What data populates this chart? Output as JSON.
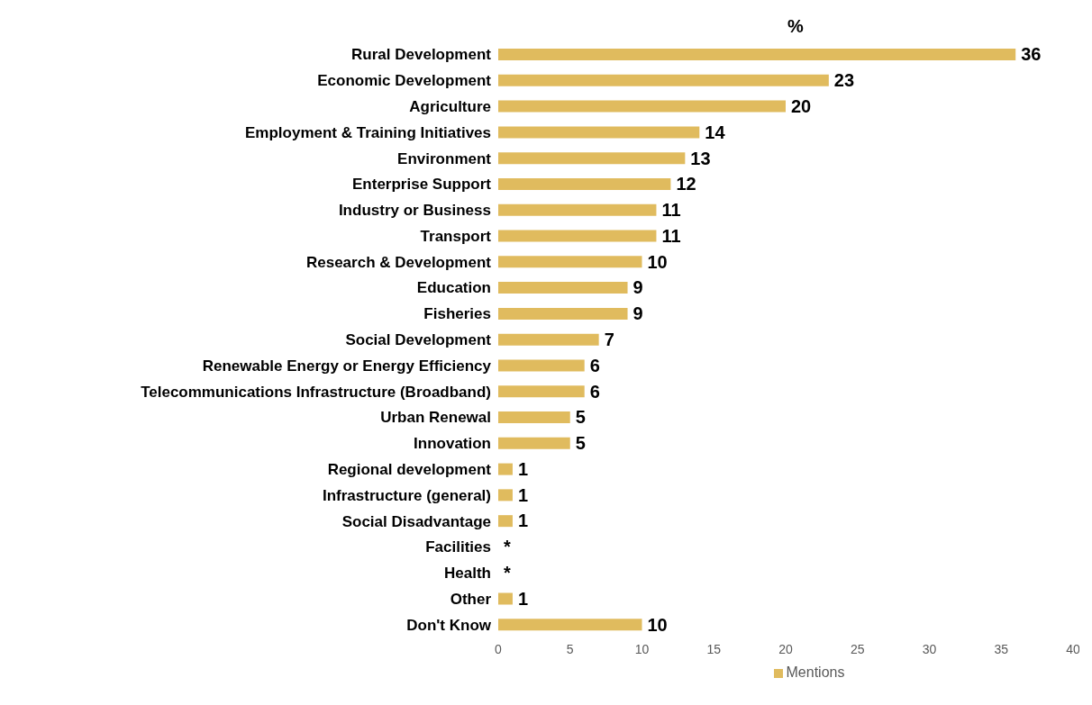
{
  "chart_data": {
    "type": "bar",
    "orientation": "horizontal",
    "title": "%",
    "categories": [
      "Rural Development",
      "Economic Development",
      "Agriculture",
      "Employment & Training Initiatives",
      "Environment",
      "Enterprise Support",
      "Industry or Business",
      "Transport",
      "Research & Development",
      "Education",
      "Fisheries",
      "Social Development",
      "Renewable Energy or Energy Efficiency",
      "Telecommunications Infrastructure (Broadband)",
      "Urban Renewal",
      "Innovation",
      "Regional development",
      "Infrastructure (general)",
      "Social Disadvantage",
      "Facilities",
      "Health",
      "Other",
      "Don't Know"
    ],
    "series": [
      {
        "name": "Mentions",
        "color": "#e0bb5e",
        "values": [
          36,
          23,
          20,
          14,
          13,
          12,
          11,
          11,
          10,
          9,
          9,
          7,
          6,
          6,
          5,
          5,
          1,
          1,
          1,
          null,
          null,
          1,
          10
        ],
        "value_labels": [
          "36",
          "23",
          "20",
          "14",
          "13",
          "12",
          "11",
          "11",
          "10",
          "9",
          "9",
          "7",
          "6",
          "6",
          "5",
          "5",
          "1",
          "1",
          "1",
          "*",
          "*",
          "1",
          "10"
        ]
      }
    ],
    "xlim": [
      0,
      40
    ],
    "xticks": [
      0,
      5,
      10,
      15,
      20,
      25,
      30,
      35,
      40
    ],
    "grid": false,
    "legend": "bottom"
  }
}
